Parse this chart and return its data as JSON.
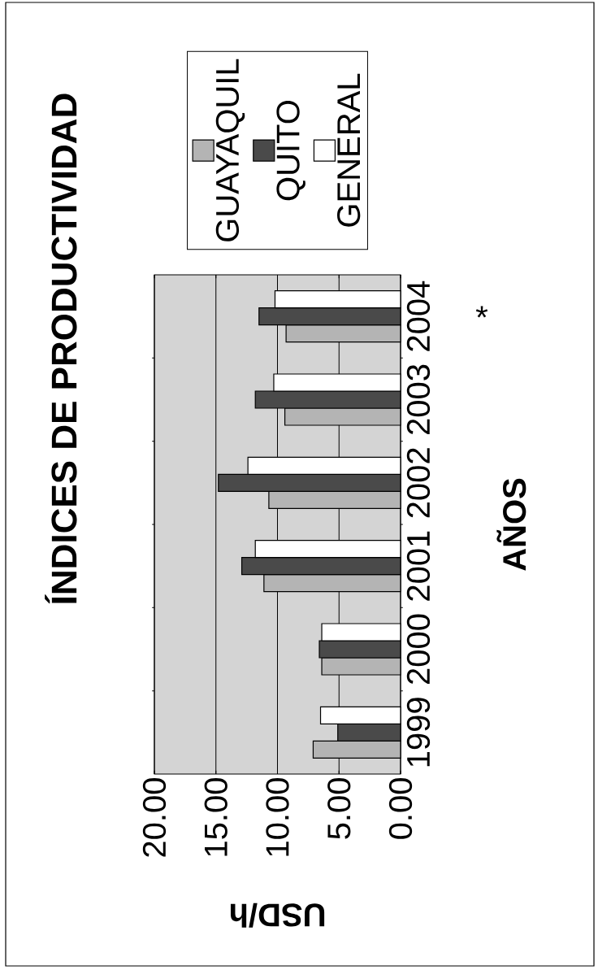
{
  "chart_data": {
    "type": "bar",
    "orientation": "horizontal",
    "title": "ÍNDICES DE PRODUCTIVIDAD",
    "xlabel": "USD/h",
    "ylabel": "AÑOS",
    "categories": [
      "2004",
      "2003",
      "2002",
      "2001",
      "2000",
      "1999"
    ],
    "series": [
      {
        "name": "GUAYAQUIL",
        "color": "#b4b4b4",
        "values": [
          9.3,
          9.4,
          10.7,
          11.1,
          6.4,
          7.1
        ]
      },
      {
        "name": "QUITO",
        "color": "#4a4a4a",
        "values": [
          11.5,
          11.8,
          14.8,
          12.9,
          6.6,
          5.1
        ]
      },
      {
        "name": "GENERAL",
        "color": "#ffffff",
        "values": [
          10.2,
          10.3,
          12.4,
          11.8,
          6.4,
          6.5
        ]
      }
    ],
    "xlim": [
      20,
      0
    ],
    "xticks": [
      {
        "value": 0,
        "label": "0.00"
      },
      {
        "value": 5,
        "label": "5.00"
      },
      {
        "value": 10,
        "label": "10.00"
      },
      {
        "value": 15,
        "label": "15.00"
      },
      {
        "value": 20,
        "label": "20.00"
      }
    ],
    "grid": "x",
    "legend": "top",
    "annotations": [
      "*"
    ]
  }
}
